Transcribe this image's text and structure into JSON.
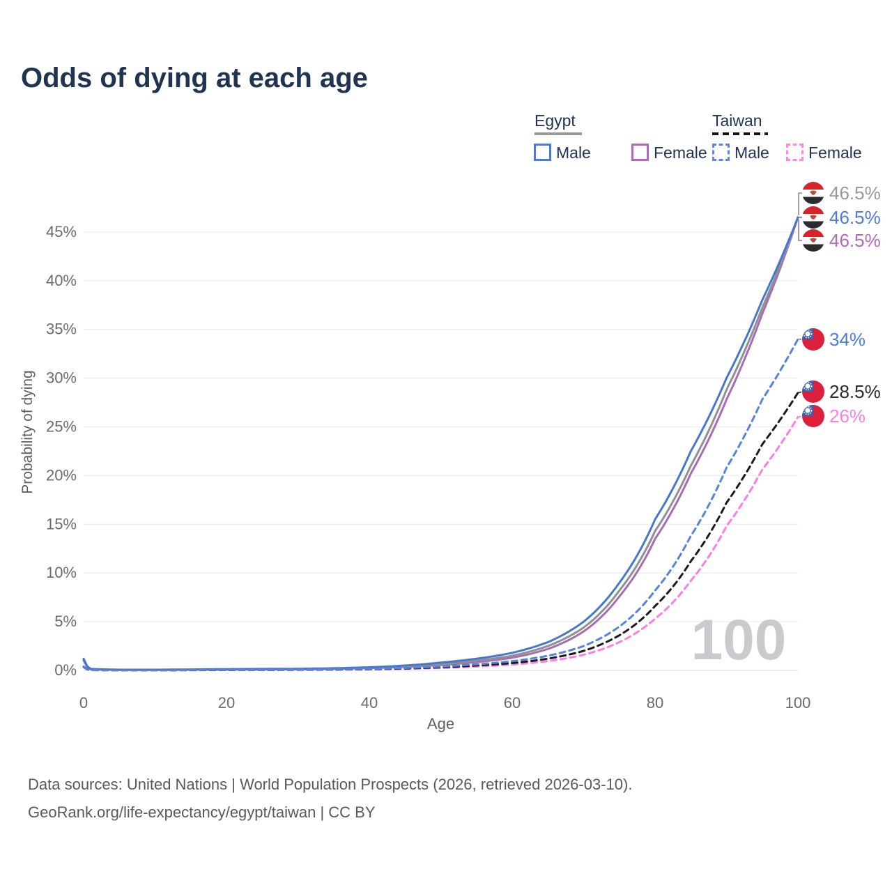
{
  "title": "Odds of dying at each age",
  "legend": {
    "egypt": {
      "label": "Egypt",
      "male": "Male",
      "female": "Female",
      "underline_color": "#9a9a9a",
      "male_color": "#4a7bd2",
      "female_color": "#b06ab8",
      "style": "solid"
    },
    "taiwan": {
      "label": "Taiwan",
      "male": "Male",
      "female": "Female",
      "underline_color": "#141414",
      "male_color": "#5d88dd",
      "female_color": "#fd8ae9",
      "style": "dashed"
    }
  },
  "footer": {
    "line1": "Data sources: United Nations | World Population Prospects (2026, retrieved 2026-03-10).",
    "line2": "GeoRank.org/life-expectancy/egypt/taiwan | CC BY"
  },
  "watermark": "100",
  "chart_data": {
    "type": "line",
    "title": "Odds of dying at each age",
    "xlabel": "Age",
    "ylabel": "Probability of dying",
    "xlim": [
      0,
      100
    ],
    "ylim": [
      0,
      49.5
    ],
    "grid": true,
    "xtick_values": [
      0,
      20,
      40,
      60,
      80,
      100
    ],
    "xtick_labels": [
      "0",
      "20",
      "40",
      "60",
      "80",
      "100"
    ],
    "ytick_values": [
      0,
      5,
      10,
      15,
      20,
      25,
      30,
      35,
      40,
      45
    ],
    "ytick_labels": [
      "0%",
      "5%",
      "10%",
      "15%",
      "20%",
      "25%",
      "30%",
      "35%",
      "40%",
      "45%"
    ],
    "legend_position": "top-right",
    "series": [
      {
        "id": "egypt-female",
        "name": "Egypt Female",
        "country": "Egypt",
        "sex": "Female",
        "style": "solid",
        "color": "#a76cb2",
        "flag": "egypt",
        "end_value": 46.5,
        "end_label": "46.5%",
        "label_color": "#b169ba",
        "x": [
          0,
          1,
          5,
          10,
          15,
          20,
          25,
          30,
          35,
          40,
          45,
          50,
          55,
          60,
          65,
          70,
          75,
          80,
          85,
          90,
          95,
          100
        ],
        "y": [
          1.0,
          0.12,
          0.055,
          0.055,
          0.07,
          0.08,
          0.1,
          0.12,
          0.16,
          0.24,
          0.36,
          0.55,
          0.85,
          1.3,
          2.2,
          4.0,
          7.6,
          13.5,
          20.2,
          27.8,
          36.6,
          46.5
        ]
      },
      {
        "id": "egypt-both",
        "name": "Egypt",
        "country": "Egypt",
        "sex": "Both",
        "style": "solid",
        "color": "#8f8f94",
        "flag": "egypt",
        "end_value": 46.5,
        "end_label": "46.5%",
        "label_color": "#98969e",
        "x": [
          0,
          1,
          5,
          10,
          15,
          20,
          25,
          30,
          35,
          40,
          45,
          50,
          55,
          60,
          65,
          70,
          75,
          80,
          85,
          90,
          95,
          100
        ],
        "y": [
          1.1,
          0.13,
          0.06,
          0.06,
          0.08,
          0.11,
          0.13,
          0.15,
          0.19,
          0.28,
          0.42,
          0.65,
          1.0,
          1.5,
          2.5,
          4.4,
          8.2,
          14.3,
          21.0,
          28.8,
          37.2,
          46.5
        ]
      },
      {
        "id": "egypt-male",
        "name": "Egypt Male",
        "country": "Egypt",
        "sex": "Male",
        "style": "solid",
        "color": "#4577cf",
        "flag": "egypt",
        "end_value": 46.5,
        "end_label": "46.5%",
        "label_color": "#4a7dd6",
        "x": [
          0,
          1,
          5,
          10,
          15,
          20,
          25,
          30,
          35,
          40,
          45,
          50,
          55,
          60,
          65,
          70,
          75,
          80,
          85,
          90,
          95,
          100
        ],
        "y": [
          1.2,
          0.15,
          0.07,
          0.07,
          0.1,
          0.13,
          0.15,
          0.17,
          0.22,
          0.32,
          0.5,
          0.8,
          1.2,
          1.8,
          2.9,
          5.0,
          9.0,
          15.5,
          22.5,
          30.0,
          38.0,
          46.5
        ]
      },
      {
        "id": "taiwan-female",
        "name": "Taiwan Female",
        "country": "Taiwan",
        "sex": "Female",
        "style": "dashed",
        "color": "#fb7de6",
        "flag": "taiwan",
        "end_value": 26,
        "end_label": "26%",
        "label_color": "#fb7de6",
        "x": [
          0,
          1,
          5,
          10,
          15,
          20,
          25,
          30,
          35,
          40,
          45,
          50,
          55,
          60,
          65,
          70,
          75,
          80,
          85,
          90,
          95,
          100
        ],
        "y": [
          0.33,
          0.03,
          0.015,
          0.015,
          0.025,
          0.035,
          0.045,
          0.055,
          0.075,
          0.1,
          0.16,
          0.25,
          0.4,
          0.6,
          0.95,
          1.6,
          2.9,
          5.3,
          9.2,
          14.8,
          20.6,
          26.0
        ]
      },
      {
        "id": "taiwan-both",
        "name": "Taiwan",
        "country": "Taiwan",
        "sex": "Both",
        "style": "dashed",
        "color": "#1b1b1f",
        "flag": "taiwan",
        "end_value": 28.5,
        "end_label": "28.5%",
        "label_color": "#2a2a2e",
        "x": [
          0,
          1,
          5,
          10,
          15,
          20,
          25,
          30,
          35,
          40,
          45,
          50,
          55,
          60,
          65,
          70,
          75,
          80,
          85,
          90,
          95,
          100
        ],
        "y": [
          0.37,
          0.035,
          0.018,
          0.018,
          0.03,
          0.045,
          0.055,
          0.07,
          0.09,
          0.13,
          0.2,
          0.32,
          0.5,
          0.75,
          1.2,
          2.0,
          3.6,
          6.6,
          11.2,
          17.2,
          23.2,
          28.5
        ]
      },
      {
        "id": "taiwan-male",
        "name": "Taiwan Male",
        "country": "Taiwan",
        "sex": "Male",
        "style": "dashed",
        "color": "#5584da",
        "flag": "taiwan",
        "end_value": 34,
        "end_label": "34%",
        "label_color": "#4a7dd6",
        "x": [
          0,
          1,
          5,
          10,
          15,
          20,
          25,
          30,
          35,
          40,
          45,
          50,
          55,
          60,
          65,
          70,
          75,
          80,
          85,
          90,
          95,
          100
        ],
        "y": [
          0.4,
          0.04,
          0.02,
          0.02,
          0.04,
          0.06,
          0.07,
          0.09,
          0.12,
          0.16,
          0.25,
          0.4,
          0.62,
          0.95,
          1.5,
          2.5,
          4.5,
          8.2,
          13.8,
          20.8,
          27.8,
          34.0
        ]
      }
    ],
    "end_label_rows": {
      "egypt-both": 277,
      "egypt-male": 312,
      "egypt-female": 345,
      "taiwan-male": 487,
      "taiwan-both": 562,
      "taiwan-female": 597
    },
    "colors": {
      "grid": "#ededed",
      "zero_line": "#e2e2e2",
      "tick_text": "#6a6a6a",
      "axis_label": "#5f5f5f",
      "watermark": "#ccc9ce",
      "title_text": "#203351"
    },
    "icons": {
      "egypt": "egypt-flag-icon",
      "taiwan": "taiwan-flag-icon"
    }
  }
}
